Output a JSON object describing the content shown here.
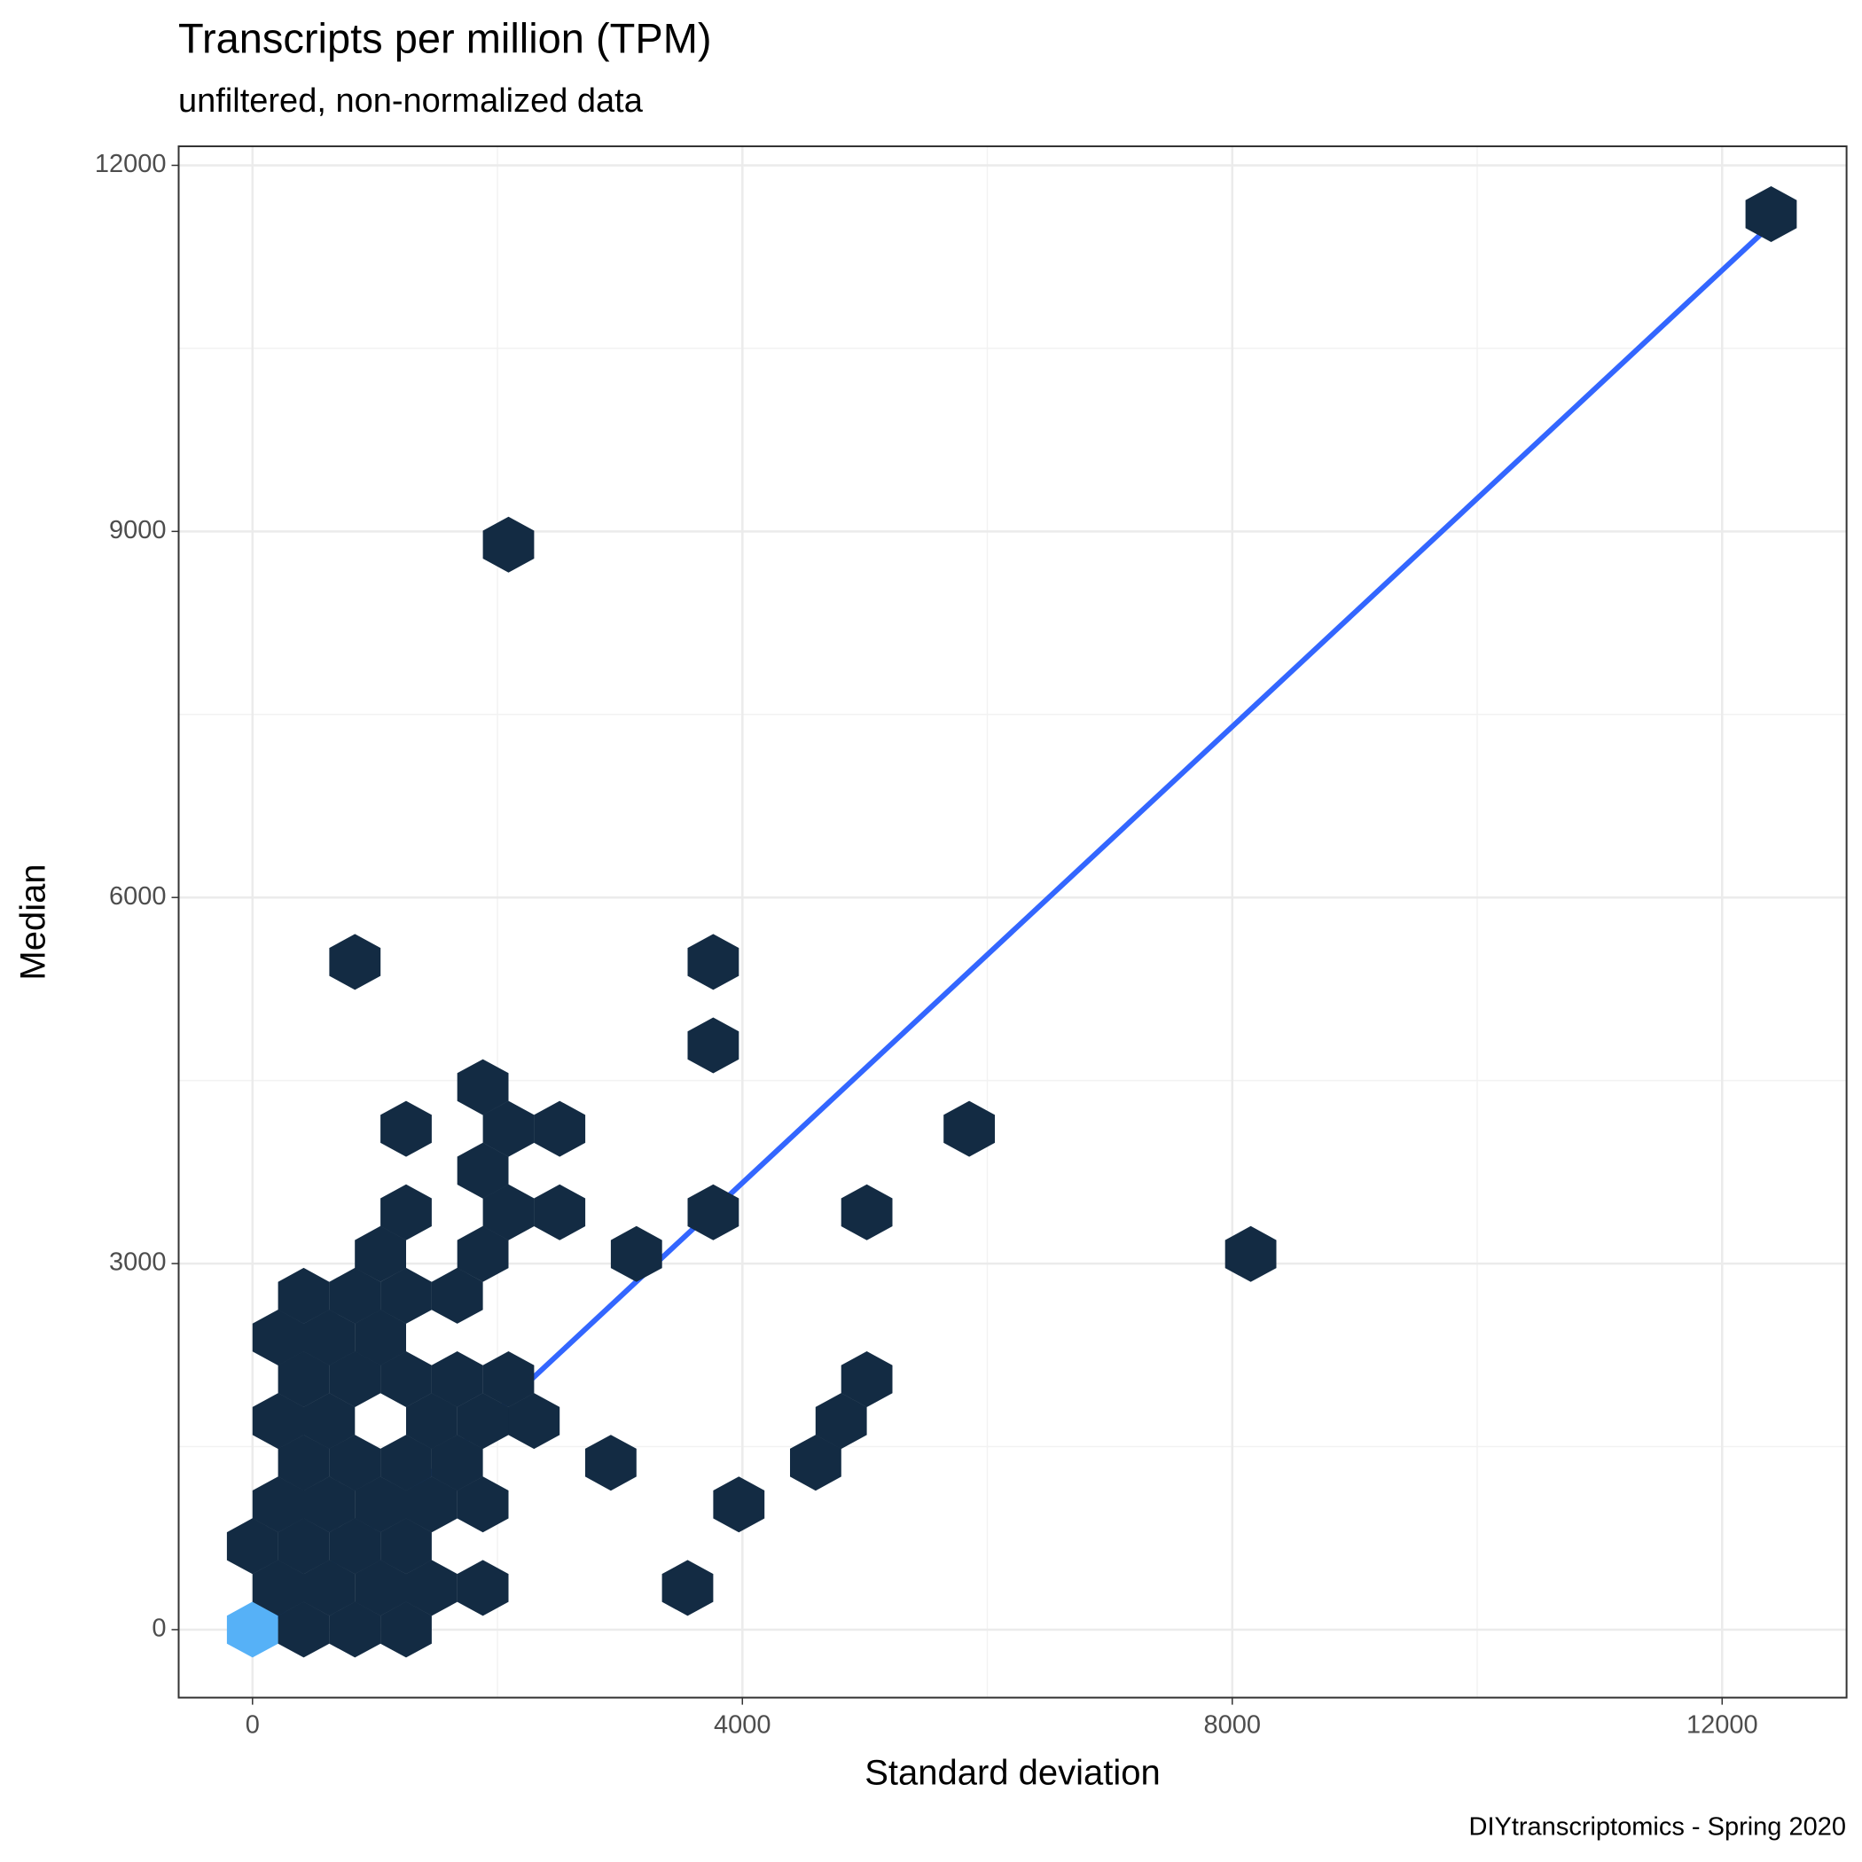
{
  "chart_data": {
    "type": "hexbin",
    "title": "Transcripts per million (TPM)",
    "subtitle": "unfiltered, non-normalized data",
    "x_label": "Standard deviation",
    "y_label": "Median",
    "caption": "DIYtranscriptomics - Spring 2020",
    "xlim": [
      -603,
      13016
    ],
    "ylim": [
      -557,
      12156
    ],
    "xticks": [
      0,
      4000,
      8000,
      12000
    ],
    "yticks": [
      0,
      3000,
      6000,
      9000,
      12000
    ],
    "grid": true,
    "series": [
      {
        "color": "#56B1F7",
        "x": [
          0
        ],
        "y": [
          0
        ]
      },
      {
        "color": "#132B43",
        "x": [
          418,
          836,
          1254,
          209,
          627,
          1045,
          1463,
          1881,
          3553,
          0,
          418,
          836,
          1254,
          209,
          627,
          1045,
          1463,
          1881,
          3971,
          418,
          836,
          1254,
          1672,
          2926,
          4598,
          209,
          627,
          1463,
          1881,
          2299,
          4807,
          418,
          836,
          1254,
          1672,
          2090,
          5016,
          209,
          627,
          1045,
          418,
          836,
          1254,
          1672,
          1045,
          1881,
          3135,
          8151,
          1254,
          2090,
          2508,
          3762,
          5016,
          1881,
          1254,
          2090,
          2508,
          5852,
          1881,
          3762,
          836,
          3762,
          2090,
          12400
        ],
        "y": [
          0,
          0,
          0,
          342,
          342,
          342,
          342,
          342,
          342,
          684,
          684,
          684,
          684,
          1026,
          1026,
          1026,
          1026,
          1026,
          1026,
          1368,
          1368,
          1368,
          1368,
          1368,
          1368,
          1710,
          1710,
          1710,
          1710,
          1710,
          1710,
          2052,
          2052,
          2052,
          2052,
          2052,
          2052,
          2394,
          2394,
          2394,
          2736,
          2736,
          2736,
          2736,
          3078,
          3078,
          3078,
          3078,
          3420,
          3420,
          3420,
          3420,
          3420,
          3762,
          4104,
          4104,
          4104,
          4104,
          4446,
          4788,
          5472,
          5472,
          8892,
          11600
        ]
      }
    ],
    "fit": {
      "color": "#3366FF",
      "x": [
        0,
        12400
      ],
      "y": [
        -78,
        11514
      ]
    }
  }
}
